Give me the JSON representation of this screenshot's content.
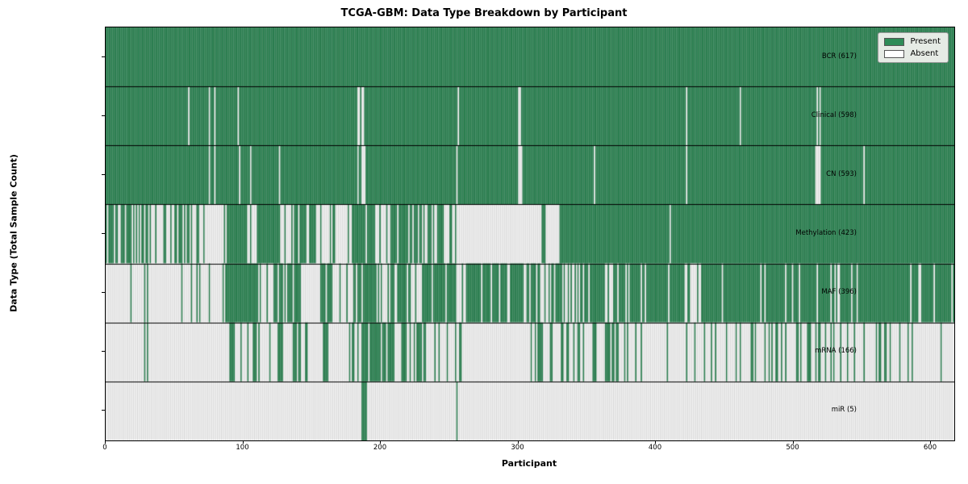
{
  "title": "TCGA-GBM: Data Type Breakdown by Participant",
  "legend": {
    "items": [
      {
        "label": "Present",
        "color": "#2e8b57"
      },
      {
        "label": "Absent",
        "color": "#ffffff"
      }
    ]
  },
  "chart_data": {
    "type": "heatmap",
    "title": "TCGA-GBM: Data Type Breakdown by Participant",
    "xlabel": "Participant",
    "ylabel": "Data Type (Total Sample Count)",
    "x_range": [
      0,
      617
    ],
    "x_ticks": [
      0,
      100,
      200,
      300,
      400,
      500,
      600
    ],
    "grid": false,
    "legend_position": "upper right",
    "legend_entries": [
      "Present",
      "Absent"
    ],
    "colors": {
      "present": "#2e8b57",
      "present_edge": "rgba(12,45,28,0.45)",
      "absent": "#ffffff",
      "absent_edge": "rgba(130,130,130,0.55)",
      "row_divider": "#000000"
    },
    "note": "Binary presence/absence matrix: 617 participants (x) by 7 data types (y). segments = [startParticipant, endParticipant, presentDensity] where 1=all present, 0=all absent, fractional=interleaved present/absent stripes.",
    "rows": [
      {
        "label": "BCR (617)",
        "name": "BCR",
        "present_count": 617,
        "segments": [
          [
            0,
            617,
            1
          ]
        ]
      },
      {
        "label": "Clinical (598)",
        "name": "Clinical",
        "present_count": 598,
        "segments": [
          [
            0,
            60,
            1
          ],
          [
            60,
            61,
            0
          ],
          [
            61,
            75,
            1
          ],
          [
            75,
            76,
            0
          ],
          [
            76,
            79,
            1
          ],
          [
            79,
            80,
            0
          ],
          [
            80,
            96,
            1
          ],
          [
            96,
            97,
            0
          ],
          [
            97,
            183,
            1
          ],
          [
            183,
            190,
            0.4
          ],
          [
            190,
            256,
            1
          ],
          [
            256,
            257,
            0
          ],
          [
            257,
            300,
            1
          ],
          [
            300,
            303,
            0.3
          ],
          [
            303,
            422,
            1
          ],
          [
            422,
            423,
            0
          ],
          [
            423,
            461,
            1
          ],
          [
            461,
            462,
            0
          ],
          [
            462,
            516,
            1
          ],
          [
            516,
            520,
            0.3
          ],
          [
            520,
            617,
            1
          ]
        ]
      },
      {
        "label": "CN (593)",
        "name": "CN",
        "present_count": 593,
        "segments": [
          [
            0,
            75,
            1
          ],
          [
            75,
            76,
            0
          ],
          [
            76,
            79,
            1
          ],
          [
            79,
            80,
            0
          ],
          [
            80,
            97,
            1
          ],
          [
            97,
            98,
            0
          ],
          [
            98,
            105,
            1
          ],
          [
            105,
            106,
            0
          ],
          [
            106,
            126,
            1
          ],
          [
            126,
            127,
            0
          ],
          [
            127,
            183,
            1
          ],
          [
            183,
            190,
            0.35
          ],
          [
            190,
            255,
            1
          ],
          [
            255,
            256,
            0
          ],
          [
            256,
            300,
            1
          ],
          [
            300,
            303,
            0.25
          ],
          [
            303,
            355,
            1
          ],
          [
            355,
            356,
            0
          ],
          [
            356,
            422,
            1
          ],
          [
            422,
            423,
            0
          ],
          [
            423,
            516,
            1
          ],
          [
            516,
            520,
            0.25
          ],
          [
            520,
            551,
            1
          ],
          [
            551,
            552,
            0
          ],
          [
            552,
            617,
            1
          ]
        ]
      },
      {
        "label": "Methylation (423)",
        "name": "Methylation",
        "present_count": 423,
        "segments": [
          [
            0,
            25,
            0.75
          ],
          [
            25,
            60,
            0.55
          ],
          [
            60,
            90,
            0.25
          ],
          [
            90,
            103,
            1
          ],
          [
            103,
            110,
            0.3
          ],
          [
            110,
            125,
            0.85
          ],
          [
            125,
            136,
            0.3
          ],
          [
            136,
            152,
            0.7
          ],
          [
            152,
            176,
            0.25
          ],
          [
            176,
            196,
            0.85
          ],
          [
            196,
            201,
            0.1
          ],
          [
            201,
            230,
            0.7
          ],
          [
            230,
            255,
            0.5
          ],
          [
            255,
            317,
            0
          ],
          [
            317,
            320,
            0.6
          ],
          [
            320,
            330,
            0
          ],
          [
            330,
            410,
            1
          ],
          [
            410,
            411,
            0
          ],
          [
            411,
            617,
            1
          ]
        ]
      },
      {
        "label": "MAF (396)",
        "name": "MAF",
        "present_count": 396,
        "segments": [
          [
            0,
            88,
            0.08
          ],
          [
            88,
            109,
            0.8
          ],
          [
            109,
            125,
            0.5
          ],
          [
            125,
            144,
            0.75
          ],
          [
            144,
            154,
            0.1
          ],
          [
            154,
            168,
            0.6
          ],
          [
            168,
            179,
            0.2
          ],
          [
            179,
            195,
            0.85
          ],
          [
            195,
            210,
            0.3
          ],
          [
            210,
            221,
            0.7
          ],
          [
            221,
            230,
            0.2
          ],
          [
            230,
            255,
            0.85
          ],
          [
            255,
            262,
            0.2
          ],
          [
            262,
            310,
            0.8
          ],
          [
            310,
            330,
            0.5
          ],
          [
            330,
            352,
            0.6
          ],
          [
            352,
            422,
            0.85
          ],
          [
            422,
            434,
            0.4
          ],
          [
            434,
            617,
            0.9
          ]
        ]
      },
      {
        "label": "mRNA (166)",
        "name": "mRNA",
        "present_count": 166,
        "segments": [
          [
            0,
            25,
            0
          ],
          [
            25,
            31,
            0.5
          ],
          [
            31,
            90,
            0.02
          ],
          [
            90,
            94,
            1
          ],
          [
            94,
            105,
            0.1
          ],
          [
            105,
            113,
            0.6
          ],
          [
            113,
            125,
            0.1
          ],
          [
            125,
            129,
            1
          ],
          [
            129,
            136,
            0
          ],
          [
            136,
            142,
            0.8
          ],
          [
            142,
            158,
            0.1
          ],
          [
            158,
            162,
            0.9
          ],
          [
            162,
            177,
            0.05
          ],
          [
            177,
            182,
            0.8
          ],
          [
            182,
            187,
            0.1
          ],
          [
            187,
            210,
            0.8
          ],
          [
            210,
            214,
            0.1
          ],
          [
            214,
            240,
            0.55
          ],
          [
            240,
            255,
            0.05
          ],
          [
            255,
            259,
            0.7
          ],
          [
            259,
            309,
            0.06
          ],
          [
            309,
            362,
            0.25
          ],
          [
            362,
            373,
            0.7
          ],
          [
            373,
            477,
            0.25
          ],
          [
            477,
            533,
            0.45
          ],
          [
            533,
            590,
            0.3
          ],
          [
            590,
            617,
            0.08
          ]
        ]
      },
      {
        "label": "miR (5)",
        "name": "miR",
        "present_count": 5,
        "segments": [
          [
            0,
            186,
            0
          ],
          [
            186,
            190,
            1
          ],
          [
            190,
            255,
            0
          ],
          [
            255,
            256,
            1
          ],
          [
            256,
            617,
            0
          ]
        ]
      }
    ]
  }
}
